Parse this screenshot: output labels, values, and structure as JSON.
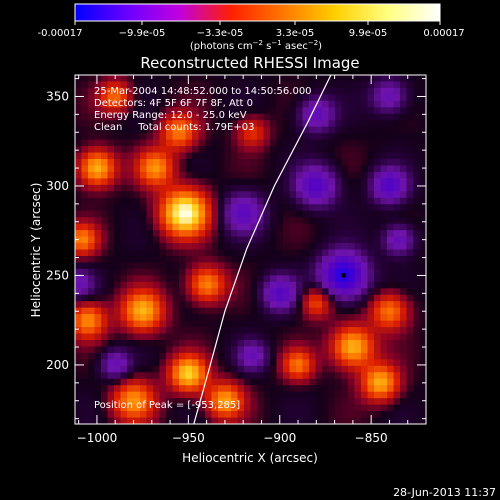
{
  "colorbar": {
    "ticks": [
      "-0.00017",
      "−9.9e-05",
      "−3.3e-05",
      "3.3e-05",
      "9.9e-05",
      "0.00017"
    ],
    "units_main": "(photons cm",
    "units_sup1": "−2",
    "units_mid": " s",
    "units_sup2": "−1",
    "units_end": " asec",
    "units_sup3": "−2",
    "units_close": ")",
    "colors": [
      "#0000ff",
      "#6a00ff",
      "#c000e0",
      "#ff2000",
      "#ff7800",
      "#ffd000",
      "#ffff80",
      "#ffffff"
    ]
  },
  "chart_data": {
    "type": "heatmap",
    "title": "Reconstructed RHESSI Image",
    "xlabel": "Heliocentric X (arcsec)",
    "ylabel": "Heliocentric Y (arcsec)",
    "xlim": [
      -1012,
      -820
    ],
    "ylim": [
      167,
      362
    ],
    "x_ticks": [
      -1000,
      -950,
      -900,
      -850
    ],
    "y_ticks": [
      200,
      250,
      300,
      350
    ],
    "x_tick_labels": [
      "−1000",
      "−950",
      "−900",
      "−850"
    ],
    "y_tick_labels": [
      "200",
      "250",
      "300",
      "350"
    ],
    "value_range": [
      -0.00017,
      0.00017
    ],
    "annotations": [
      "25-Mar-2004 14:48:52.000 to 14:50:56.000",
      "Detectors: 4F 5F 6F 7F 8F, Att 0",
      "Energy Range: 12.0 - 25.0 keV",
      "Clean     Total counts: 1.79E+03"
    ],
    "peak_label": "Position of Peak = [-953,285]",
    "peak": [
      -953,
      285
    ],
    "min_marker": [
      -865,
      250
    ],
    "limb_curve": [
      [
        -947,
        167
      ],
      [
        -938,
        200
      ],
      [
        -930,
        230
      ],
      [
        -918,
        265
      ],
      [
        -903,
        300
      ],
      [
        -885,
        335
      ],
      [
        -872,
        362
      ]
    ],
    "blobs": [
      {
        "x": -952,
        "y": 285,
        "v": 1.0,
        "s": 9
      },
      {
        "x": -1000,
        "y": 310,
        "v": 0.75,
        "s": 7
      },
      {
        "x": -968,
        "y": 310,
        "v": 0.6,
        "s": 7
      },
      {
        "x": -955,
        "y": 330,
        "v": 0.55,
        "s": 7
      },
      {
        "x": -1008,
        "y": 270,
        "v": 0.55,
        "s": 6
      },
      {
        "x": -1005,
        "y": 225,
        "v": 0.6,
        "s": 7
      },
      {
        "x": -975,
        "y": 230,
        "v": 0.7,
        "s": 8
      },
      {
        "x": -940,
        "y": 245,
        "v": 0.6,
        "s": 7
      },
      {
        "x": -980,
        "y": 180,
        "v": 0.6,
        "s": 8
      },
      {
        "x": -950,
        "y": 195,
        "v": 0.8,
        "s": 7
      },
      {
        "x": -930,
        "y": 180,
        "v": 0.65,
        "s": 7
      },
      {
        "x": -990,
        "y": 350,
        "v": 0.5,
        "s": 6
      },
      {
        "x": -860,
        "y": 210,
        "v": 0.75,
        "s": 8
      },
      {
        "x": -845,
        "y": 190,
        "v": 0.7,
        "s": 7
      },
      {
        "x": -840,
        "y": 230,
        "v": 0.55,
        "s": 7
      },
      {
        "x": -890,
        "y": 200,
        "v": 0.5,
        "s": 6
      },
      {
        "x": -880,
        "y": 235,
        "v": 0.45,
        "s": 6
      },
      {
        "x": -915,
        "y": 330,
        "v": 0.35,
        "s": 6
      },
      {
        "x": -880,
        "y": 300,
        "v": -0.55,
        "s": 8
      },
      {
        "x": -865,
        "y": 250,
        "v": -0.85,
        "s": 9
      },
      {
        "x": -900,
        "y": 240,
        "v": -0.5,
        "s": 7
      },
      {
        "x": -920,
        "y": 285,
        "v": -0.45,
        "s": 8
      },
      {
        "x": -880,
        "y": 340,
        "v": -0.45,
        "s": 7
      },
      {
        "x": -840,
        "y": 350,
        "v": -0.4,
        "s": 7
      },
      {
        "x": -840,
        "y": 300,
        "v": -0.55,
        "s": 7
      },
      {
        "x": -835,
        "y": 270,
        "v": -0.45,
        "s": 6
      },
      {
        "x": -1010,
        "y": 245,
        "v": -0.35,
        "s": 6
      },
      {
        "x": -990,
        "y": 200,
        "v": -0.4,
        "s": 6
      },
      {
        "x": -915,
        "y": 205,
        "v": -0.35,
        "s": 6
      }
    ]
  },
  "footer": {
    "date": "28-Jun-2013 11:37"
  }
}
